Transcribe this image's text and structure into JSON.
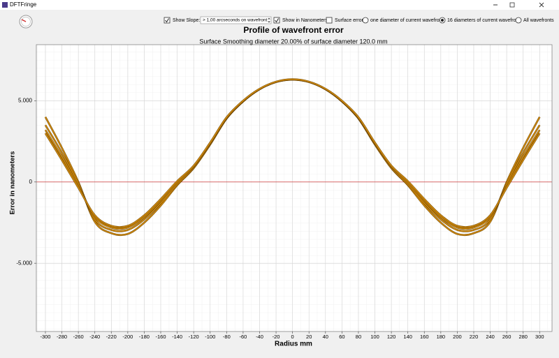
{
  "window": {
    "title": "DFTFringe"
  },
  "toolbar": {
    "checks": [
      {
        "label": "Show Slope:",
        "checked": true
      },
      {
        "label": "Show in Nanometers",
        "checked": true
      },
      {
        "label": "Surface error",
        "checked": false
      }
    ],
    "slope_combo": "> 1,00 arcseconds on wavefront",
    "radios": [
      {
        "label": "one diameter of current wavefront",
        "selected": false
      },
      {
        "label": "16 diameters of current wavefront",
        "selected": true
      },
      {
        "label": "All wavefronts",
        "selected": false
      }
    ]
  },
  "chart_data": {
    "type": "line",
    "title": "Profile of wavefront error",
    "subtitle": "Surface Smoothing diameter  20.00% of surface diameter  120.0 mm",
    "x_label": "Radius mm",
    "y_label": "Error in nanometers",
    "xlim": [
      -311,
      315
    ],
    "ylim": [
      -9200,
      8450
    ],
    "xticks": [
      -300,
      -280,
      -260,
      -240,
      -220,
      -200,
      -180,
      -160,
      -140,
      -120,
      -100,
      -80,
      -60,
      -40,
      -20,
      0,
      20,
      40,
      60,
      80,
      100,
      120,
      140,
      160,
      180,
      200,
      220,
      240,
      260,
      280,
      300
    ],
    "yticks": [
      {
        "value": 5000,
        "label": "5.000"
      },
      0,
      {
        "value": -5000,
        "label": "-5.000"
      }
    ],
    "grid": true,
    "reference_line": {
      "value": 0,
      "color": "#d04040"
    },
    "x": [
      -300,
      -280,
      -260,
      -240,
      -220,
      -200,
      -180,
      -160,
      -140,
      -120,
      -100,
      -80,
      -60,
      -40,
      -20,
      0,
      20,
      40,
      60,
      80,
      100,
      120,
      140,
      160,
      180,
      200,
      220,
      240,
      260,
      280,
      300
    ],
    "series": [
      {
        "color": "#d08a0e",
        "values": [
          4000,
          2100,
          0,
          -2450,
          -3150,
          -3200,
          -2500,
          -1450,
          -200,
          850,
          2300,
          3900,
          4950,
          5700,
          6150,
          6300,
          6150,
          5700,
          4950,
          3900,
          2300,
          850,
          -200,
          -1450,
          -2500,
          -3200,
          -3150,
          -2450,
          0,
          2100,
          4000
        ]
      },
      {
        "color": "#d08a0e",
        "values": [
          3500,
          1800,
          -100,
          -2300,
          -2950,
          -2950,
          -2300,
          -1300,
          -150,
          880,
          2320,
          3920,
          4960,
          5710,
          6150,
          6300,
          6150,
          5710,
          4960,
          3920,
          2320,
          880,
          -150,
          -1300,
          -2300,
          -2950,
          -2950,
          -2300,
          -100,
          1800,
          3500
        ]
      },
      {
        "color": "#d08a0e",
        "values": [
          3200,
          1550,
          -250,
          -2150,
          -2800,
          -2800,
          -2150,
          -1150,
          -50,
          950,
          2380,
          3950,
          4980,
          5720,
          6160,
          6310,
          6160,
          5720,
          4980,
          3950,
          2380,
          950,
          -50,
          -1150,
          -2150,
          -2800,
          -2800,
          -2150,
          -250,
          1550,
          3200
        ]
      },
      {
        "color": "#d08a0e",
        "values": [
          3000,
          1350,
          -350,
          -2050,
          -2700,
          -2700,
          -2050,
          -1050,
          50,
          1000,
          2420,
          3980,
          5000,
          5730,
          6170,
          6320,
          6170,
          5730,
          5000,
          3980,
          2420,
          1000,
          50,
          -1050,
          -2050,
          -2700,
          -2700,
          -2050,
          -350,
          1350,
          3000
        ]
      }
    ]
  }
}
